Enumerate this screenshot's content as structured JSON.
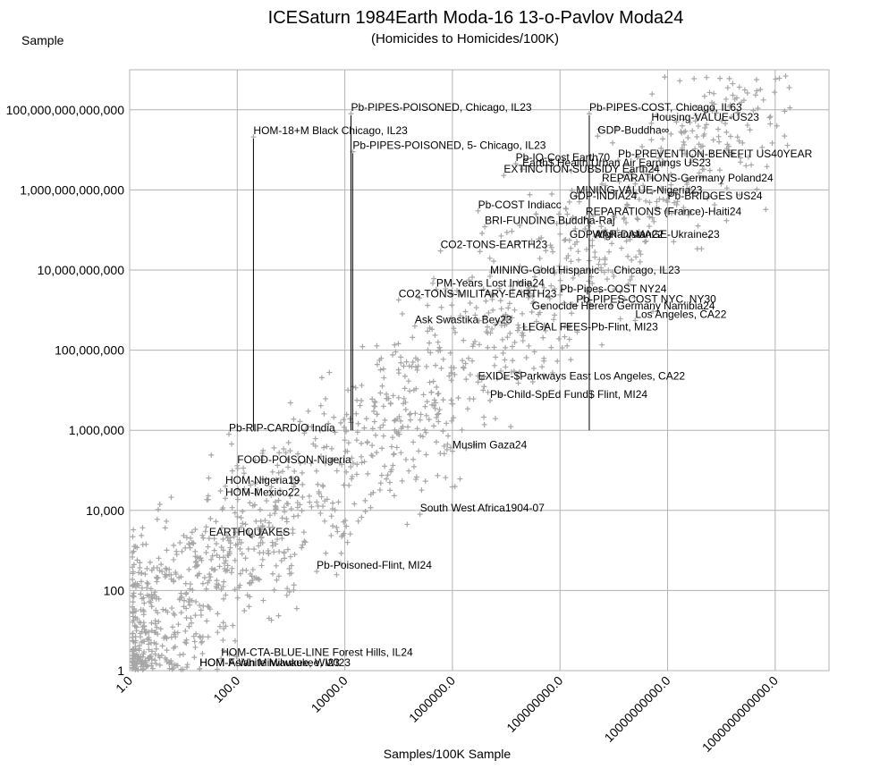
{
  "chart_data": {
    "type": "scatter",
    "title": "ICESaturn 1984Earth Moda-16 13-o-Pavlov Moda24",
    "subtitle": "(Homicides to Homicides/100K)",
    "xlabel": "Samples/100K Sample",
    "ylabel": "Sample",
    "x_scale": "log",
    "y_scale": "log",
    "xlim": [
      1,
      10000000000000
    ],
    "ylim": [
      1,
      1000000000000000
    ],
    "grid": true,
    "legend": "none",
    "x_ticks": [
      {
        "value": 1,
        "label": "1.0"
      },
      {
        "value": 100,
        "label": "100.0"
      },
      {
        "value": 10000,
        "label": "10000.0"
      },
      {
        "value": 1000000,
        "label": "1000000.0"
      },
      {
        "value": 100000000,
        "label": "100000000.0"
      },
      {
        "value": 10000000000,
        "label": "10000000000.0"
      },
      {
        "value": 1000000000000,
        "label": "1000000000000.0"
      }
    ],
    "y_ticks": [
      {
        "value": 1,
        "label": "1"
      },
      {
        "value": 100,
        "label": "100"
      },
      {
        "value": 10000,
        "label": "10,000"
      },
      {
        "value": 1000000,
        "label": "1,000,000"
      },
      {
        "value": 100000000,
        "label": "100,000,000"
      },
      {
        "value": 10000000000,
        "label": "10,000,000,000"
      },
      {
        "value": 1000000000000,
        "label": "1,000,000,000,000"
      },
      {
        "value": 100000000000000,
        "label": "100,000,000,000,000"
      }
    ],
    "series": [
      {
        "name": "samples",
        "marker": "+",
        "color": "#a6a6a6",
        "cloud": {
          "count": 1500,
          "seed": 7,
          "x_log_range": [
            0.05,
            12.3
          ],
          "spread_log": 1.4,
          "slope": 1.15
        }
      }
    ],
    "labeled_points": [
      {
        "label": "Pb-PIPES-POISONED, Chicago, IL23",
        "x": 13000,
        "y": 80000000000000,
        "stem": true
      },
      {
        "label": "Pb-PIPES-COST, Chicago, IL63",
        "x": 350000000,
        "y": 80000000000000,
        "stem": true
      },
      {
        "label": "HOM-18+M Black Chicago, IL23",
        "x": 200,
        "y": 21000000000000,
        "stem": true
      },
      {
        "label": "Pb-PIPES-POISONED, 5- Chicago, IL23",
        "x": 14000,
        "y": 9000000000000,
        "stem": true
      },
      {
        "label": "Housing-VALUE-US23",
        "x": 5000000000,
        "y": 46000000000000
      },
      {
        "label": "GDP-Buddha∞",
        "x": 500000000,
        "y": 22000000000000
      },
      {
        "label": "Pb-PREVENTION-BENEFIT US40YEAR",
        "x": 1200000000,
        "y": 5500000000000
      },
      {
        "label": "Pb-IQ-Cost Earth70",
        "x": 15000000,
        "y": 4500000000000
      },
      {
        "label": "Earth$ Health Urban Air Earnings US23",
        "x": 20000000,
        "y": 3300000000000
      },
      {
        "label": "EXTINCTION-SUBSIDY Earth24",
        "x": 9000000,
        "y": 2300000000000
      },
      {
        "label": "REPARATIONS-Germany Poland24",
        "x": 600000000,
        "y": 1400000000000
      },
      {
        "label": "Pb-BRIDGES US24",
        "x": 10000000000,
        "y": 500000000000
      },
      {
        "label": "MINING-VALUE-Nigeria23",
        "x": 200000000,
        "y": 700000000000
      },
      {
        "label": "GDP-INDIA24",
        "x": 150000000,
        "y": 500000000000
      },
      {
        "label": "Pb-COST Indiacc",
        "x": 3000000,
        "y": 300000000000
      },
      {
        "label": "REPARATIONS (France)-Haiti24",
        "x": 300000000,
        "y": 200000000000
      },
      {
        "label": "BRI-FUNDING Buddha-Raj",
        "x": 4000000,
        "y": 120000000000
      },
      {
        "label": "GDP Afghanistan22",
        "x": 150000000,
        "y": 55000000000
      },
      {
        "label": "WAR-DAMAGE-Ukraine23",
        "x": 400000000,
        "y": 55000000000
      },
      {
        "label": "CO2-TONS-EARTH23",
        "x": 600000,
        "y": 30000000000
      },
      {
        "label": "MINING-Gold Hispanic",
        "x": 5000000,
        "y": 7000000000
      },
      {
        "label": "Chicago, IL23",
        "x": 1000000000,
        "y": 7000000000
      },
      {
        "label": "PM-Years Lost India24",
        "x": 500000,
        "y": 3300000000
      },
      {
        "label": "CO2-TONS-MILITARY-EARTH23",
        "x": 100000,
        "y": 1800000000
      },
      {
        "label": "Pb-Pipes-COST NY24",
        "x": 100000000,
        "y": 2400000000
      },
      {
        "label": "Pb-PIPES-COST NYC, NY30",
        "x": 200000000,
        "y": 1300000000
      },
      {
        "label": "Genocide Herero Germany Namibia24",
        "x": 30000000,
        "y": 900000000
      },
      {
        "label": "Los Angeles, CA22",
        "x": 2500000000,
        "y": 550000000
      },
      {
        "label": "Ask Swastika Bey23",
        "x": 200000,
        "y": 400000000
      },
      {
        "label": "LEGAL FEES-Pb-Flint, MI23",
        "x": 20000000,
        "y": 270000000
      },
      {
        "label": "EXIDE-$Parkways East Los Angeles, CA22",
        "x": 3000000,
        "y": 16000000
      },
      {
        "label": "Pb-Child-SpEd Fund$ Flint, MI24",
        "x": 5000000,
        "y": 5500000
      },
      {
        "label": "Pb-RIP-CARDIO India",
        "x": 70,
        "y": 800000
      },
      {
        "label": "FOOD-POISON-Nigeria",
        "x": 100,
        "y": 130000
      },
      {
        "label": "Muslim Gaza24",
        "x": 1000000,
        "y": 300000
      },
      {
        "label": "HOM-Nigeria19",
        "x": 60,
        "y": 40000
      },
      {
        "label": "HOM-Mexico22",
        "x": 60,
        "y": 20000
      },
      {
        "label": "South West Africa1904-07",
        "x": 250000,
        "y": 8000
      },
      {
        "label": "EARTHQUAKES",
        "x": 30,
        "y": 2000
      },
      {
        "label": "Pb-Poisoned-Flint, MI24",
        "x": 3000,
        "y": 300
      },
      {
        "label": "HOM-CTA-BLUE-LINE Forest Hills, IL24",
        "x": 50,
        "y": 2
      },
      {
        "label": "HOM-F-White Milwaukee, WI23",
        "x": 20,
        "y": 1
      },
      {
        "label": "HOM-Asian Milwaukee, WI23",
        "x": 20,
        "y": 0.5
      }
    ]
  }
}
